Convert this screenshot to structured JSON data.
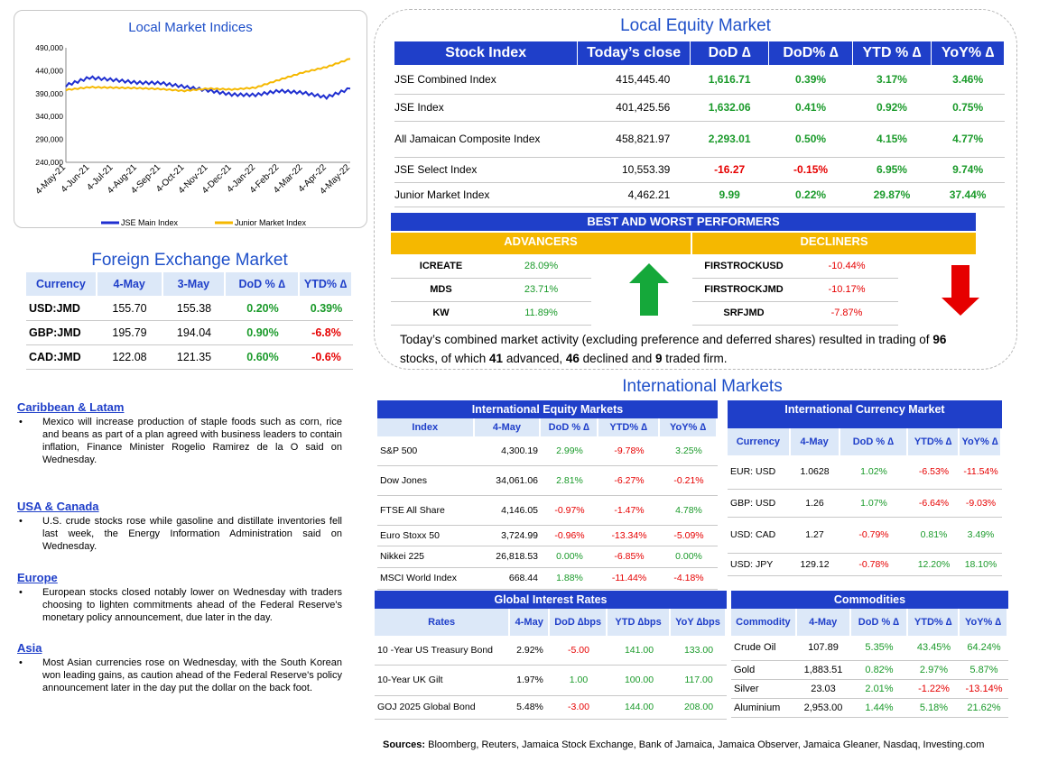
{
  "chart": {
    "title": "Local Market Indices",
    "y_ticks": [
      "490,000",
      "440,000",
      "390,000",
      "340,000",
      "290,000",
      "240,000"
    ],
    "x_ticks": [
      "4-May-21",
      "4-Jun-21",
      "4-Jul-21",
      "4-Aug-21",
      "4-Sep-21",
      "4-Oct-21",
      "4-Nov-21",
      "4-Dec-21",
      "4-Jan-22",
      "4-Feb-22",
      "4-Mar-22",
      "4-Apr-22",
      "4-May-22"
    ],
    "legend_main": "JSE Main Index",
    "legend_junior": "Junior Market Index"
  },
  "chart_data": {
    "type": "line",
    "ylim": [
      240000,
      490000
    ],
    "x": [
      "4-May-21",
      "4-Jun-21",
      "4-Jul-21",
      "4-Aug-21",
      "4-Sep-21",
      "4-Oct-21",
      "4-Nov-21",
      "4-Dec-21",
      "4-Jan-22",
      "4-Feb-22",
      "4-Mar-22",
      "4-Apr-22",
      "4-May-22"
    ],
    "series": [
      {
        "name": "JSE Main Index",
        "color": "#1f2fd0",
        "values": [
          408000,
          425000,
          420000,
          414000,
          413000,
          405000,
          397000,
          388000,
          387000,
          396000,
          392000,
          382000,
          401000
        ]
      },
      {
        "name": "Junior Market Index",
        "color": "#f5b800",
        "values": [
          398000,
          404000,
          403000,
          402000,
          400000,
          396000,
          401000,
          399000,
          403000,
          420000,
          436000,
          448000,
          466000
        ]
      }
    ]
  },
  "fx": {
    "title": "Foreign Exchange Market",
    "headers": [
      "Currency",
      "4-May",
      "3-May",
      "DoD % ∆",
      "YTD% ∆"
    ],
    "rows": [
      [
        "USD:JMD",
        "155.70",
        "155.38",
        "0.20%",
        "0.39%"
      ],
      [
        "GBP:JMD",
        "195.79",
        "194.04",
        "0.90%",
        "-6.8%"
      ],
      [
        "CAD:JMD",
        "122.08",
        "121.35",
        "0.60%",
        "-0.6%"
      ]
    ]
  },
  "news": [
    {
      "h": "Caribbean & Latam",
      "t": "Mexico will increase production of staple foods such as corn, rice and beans as part of a plan agreed with business leaders to contain inflation, Finance Minister Rogelio Ramirez de la O said on Wednesday."
    },
    {
      "h": "USA & Canada",
      "t": "U.S. crude stocks rose while gasoline and distillate inventories fell last week, the Energy Information Administration said on Wednesday."
    },
    {
      "h": "Europe",
      "t": "European stocks closed notably lower on Wednesday with traders choosing to lighten commitments ahead of the Federal Reserve's monetary policy announcement, due later in the day."
    },
    {
      "h": "Asia",
      "t": "Most Asian currencies rose on Wednesday, with the South Korean won leading gains, as caution ahead of the Federal Reserve's policy announcement later in the day put the dollar on the back foot."
    }
  ],
  "equity": {
    "title": "Local Equity Market",
    "headers": [
      "Stock Index",
      "Today’s close",
      "DoD  ∆",
      "DoD% ∆",
      "YTD % ∆",
      "YoY% ∆"
    ],
    "rows": [
      [
        "JSE Combined Index",
        "415,445.40",
        "1,616.71",
        "0.39%",
        "3.17%",
        "3.46%"
      ],
      [
        "JSE Index",
        "401,425.56",
        "1,632.06",
        "0.41%",
        "0.92%",
        "0.75%"
      ],
      [
        "All Jamaican Composite Index",
        "458,821.97",
        "2,293.01",
        "0.50%",
        "4.15%",
        "4.77%"
      ],
      [
        "JSE Select Index",
        "10,553.39",
        "-16.27",
        "-0.15%",
        "6.95%",
        "9.74%"
      ],
      [
        "Junior Market Index",
        "4,462.21",
        "9.99",
        "0.22%",
        "29.87%",
        "37.44%"
      ]
    ]
  },
  "performers": {
    "title": "BEST AND WORST PERFORMERS",
    "adv_label": "ADVANCERS",
    "dec_label": "DECLINERS",
    "adv": [
      [
        "ICREATE",
        "28.09%"
      ],
      [
        "MDS",
        "23.71%"
      ],
      [
        "KW",
        "11.89%"
      ]
    ],
    "dec": [
      [
        "FIRSTROCKUSD",
        "-10.44%"
      ],
      [
        "FIRSTROCKJMD",
        "-10.17%"
      ],
      [
        "SRFJMD",
        "-7.87%"
      ]
    ]
  },
  "summary": {
    "a": "Today’s combined market activity (excluding preference and deferred shares) resulted in trading of ",
    "n1": "96",
    "b": " stocks, of which ",
    "n2": "41",
    "c": " advanced, ",
    "n3": "46",
    "d": " declined and ",
    "n4": "9",
    "e": " traded firm."
  },
  "intl_title": "International Markets",
  "ie": {
    "title": "International Equity Markets",
    "headers": [
      "Index",
      "4-May",
      "DoD % ∆",
      "YTD% ∆",
      "YoY% ∆"
    ],
    "rows": [
      [
        "S&P 500",
        "4,300.19",
        "2.99%",
        "-9.78%",
        "3.25%"
      ],
      [
        "Dow Jones",
        "34,061.06",
        "2.81%",
        "-6.27%",
        "-0.21%"
      ],
      [
        "FTSE All Share",
        "4,146.05",
        "-0.97%",
        "-1.47%",
        "4.78%"
      ],
      [
        "Euro Stoxx 50",
        "3,724.99",
        "-0.96%",
        "-13.34%",
        "-5.09%"
      ],
      [
        "Nikkei 225",
        "26,818.53",
        "0.00%",
        "-6.85%",
        "0.00%"
      ],
      [
        "MSCI World Index",
        "668.44",
        "1.88%",
        "-11.44%",
        "-4.18%"
      ]
    ]
  },
  "ic": {
    "title": "International Currency Market",
    "headers": [
      "Currency",
      "4-May",
      "DoD % ∆",
      "YTD% ∆",
      "YoY% ∆"
    ],
    "rows": [
      [
        "EUR: USD",
        "1.0628",
        "1.02%",
        "-6.53%",
        "-11.54%"
      ],
      [
        "GBP: USD",
        "1.26",
        "1.07%",
        "-6.64%",
        "-9.03%"
      ],
      [
        "USD: CAD",
        "1.27",
        "-0.79%",
        "0.81%",
        "3.49%"
      ],
      [
        "USD: JPY",
        "129.12",
        "-0.78%",
        "12.20%",
        "18.10%"
      ]
    ]
  },
  "gr": {
    "title": "Global Interest Rates",
    "headers": [
      "Rates",
      "4-May",
      "DoD ∆bps",
      "YTD ∆bps",
      "YoY ∆bps"
    ],
    "rows": [
      [
        "10 -Year US Treasury Bond",
        "2.92%",
        "-5.00",
        "141.00",
        "133.00"
      ],
      [
        "10-Year UK Gilt",
        "1.97%",
        "1.00",
        "100.00",
        "117.00"
      ],
      [
        "GOJ 2025 Global Bond",
        "5.48%",
        "-3.00",
        "144.00",
        "208.00"
      ]
    ]
  },
  "cm": {
    "title": "Commodities",
    "headers": [
      "Commodity",
      "4-May",
      "DoD % ∆",
      "YTD% ∆",
      "YoY% ∆"
    ],
    "rows": [
      [
        "Crude Oil",
        "107.89",
        "5.35%",
        "43.45%",
        "64.24%"
      ],
      [
        "Gold",
        "1,883.51",
        "0.82%",
        "2.97%",
        "5.87%"
      ],
      [
        "Silver",
        "23.03",
        "2.01%",
        "-1.22%",
        "-13.14%"
      ],
      [
        "Aluminium",
        "2,953.00",
        "1.44%",
        "5.18%",
        "21.62%"
      ]
    ]
  },
  "sources": {
    "label": "Sources:",
    "text": " Bloomberg, Reuters, Jamaica Stock Exchange, Bank of Jamaica, Jamaica Observer, Jamaica Gleaner, Nasdaq, Investing.com"
  }
}
